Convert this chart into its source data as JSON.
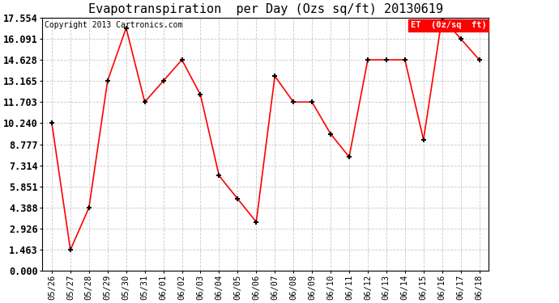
{
  "title": "Evapotranspiration  per Day (Ozs sq/ft) 20130619",
  "copyright": "Copyright 2013 Cartronics.com",
  "legend_label": "ET  (0z/sq  ft)",
  "x_labels": [
    "05/26",
    "05/27",
    "05/28",
    "05/29",
    "05/30",
    "05/31",
    "06/01",
    "06/02",
    "06/03",
    "06/04",
    "06/05",
    "06/06",
    "06/07",
    "06/08",
    "06/09",
    "06/10",
    "06/11",
    "06/12",
    "06/13",
    "06/14",
    "06/15",
    "06/16",
    "06/17",
    "06/18"
  ],
  "y_values": [
    10.24,
    1.463,
    4.388,
    13.165,
    16.828,
    11.703,
    13.165,
    14.628,
    12.2,
    6.6,
    5.0,
    3.4,
    13.5,
    11.703,
    11.703,
    9.5,
    7.9,
    14.628,
    14.628,
    14.628,
    9.1,
    17.554,
    16.091,
    14.628
  ],
  "ylim": [
    0.0,
    17.554
  ],
  "yticks": [
    0.0,
    1.463,
    2.926,
    4.388,
    5.851,
    7.314,
    8.777,
    10.24,
    11.703,
    13.165,
    14.628,
    16.091,
    17.554
  ],
  "line_color": "red",
  "marker_color": "black",
  "background_color": "#ffffff",
  "grid_color": "#c8c8c8",
  "legend_bg": "red",
  "legend_text_color": "white",
  "title_fontsize": 11,
  "copyright_fontsize": 7,
  "tick_fontsize": 7.5,
  "ytick_fontsize": 8.5
}
